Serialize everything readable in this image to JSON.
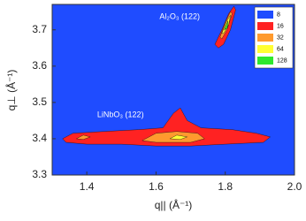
{
  "chart_data": {
    "type": "contour",
    "x_label": "q|| (Å⁻¹)",
    "y_label": "q⊥ (Å⁻¹)",
    "xlim": [
      1.3,
      2.0
    ],
    "xticks": [
      1.4,
      1.6,
      1.8,
      {
        "value": 2.0,
        "label": "2.0"
      }
    ],
    "ylim": [
      3.3,
      3.77
    ],
    "yticks": [
      3.3,
      3.4,
      3.5,
      3.6,
      3.7
    ],
    "background": "#1f4cff",
    "levels": [
      8,
      16,
      32,
      64,
      128
    ],
    "colors": [
      "#1f4cff",
      "#ff2222",
      "#ff9a2e",
      "#ffff33",
      "#2ee82e"
    ],
    "annotations": [
      {
        "text": "Al₂O₃ (122)",
        "x": 1.61,
        "y": 3.735
      },
      {
        "text": "LiNbO₃ (122)",
        "x": 1.43,
        "y": 3.465
      }
    ],
    "regions": [
      {
        "level": 16,
        "points": [
          [
            1.33,
            3.4
          ],
          [
            1.36,
            3.415
          ],
          [
            1.45,
            3.42
          ],
          [
            1.55,
            3.425
          ],
          [
            1.62,
            3.43
          ],
          [
            1.65,
            3.47
          ],
          [
            1.67,
            3.485
          ],
          [
            1.69,
            3.45
          ],
          [
            1.73,
            3.43
          ],
          [
            1.82,
            3.425
          ],
          [
            1.89,
            3.415
          ],
          [
            1.93,
            3.405
          ],
          [
            1.91,
            3.39
          ],
          [
            1.8,
            3.385
          ],
          [
            1.7,
            3.38
          ],
          [
            1.6,
            3.38
          ],
          [
            1.5,
            3.385
          ],
          [
            1.4,
            3.385
          ],
          [
            1.34,
            3.39
          ]
        ]
      },
      {
        "level": 32,
        "points": [
          [
            1.56,
            3.395
          ],
          [
            1.6,
            3.415
          ],
          [
            1.66,
            3.42
          ],
          [
            1.72,
            3.415
          ],
          [
            1.74,
            3.4
          ],
          [
            1.7,
            3.39
          ],
          [
            1.6,
            3.39
          ]
        ]
      },
      {
        "level": 32,
        "points": [
          [
            1.37,
            3.4
          ],
          [
            1.39,
            3.41
          ],
          [
            1.41,
            3.405
          ],
          [
            1.39,
            3.398
          ]
        ]
      },
      {
        "level": 64,
        "points": [
          [
            1.64,
            3.4
          ],
          [
            1.66,
            3.41
          ],
          [
            1.69,
            3.405
          ],
          [
            1.67,
            3.398
          ]
        ]
      },
      {
        "level": 16,
        "points": [
          [
            1.77,
            3.66
          ],
          [
            1.79,
            3.7
          ],
          [
            1.81,
            3.745
          ],
          [
            1.825,
            3.765
          ],
          [
            1.83,
            3.755
          ],
          [
            1.815,
            3.7
          ],
          [
            1.795,
            3.66
          ],
          [
            1.78,
            3.65
          ]
        ]
      },
      {
        "level": 32,
        "points": [
          [
            1.785,
            3.68
          ],
          [
            1.8,
            3.72
          ],
          [
            1.815,
            3.75
          ],
          [
            1.82,
            3.745
          ],
          [
            1.805,
            3.7
          ],
          [
            1.79,
            3.675
          ]
        ]
      },
      {
        "level": 64,
        "points": [
          [
            1.79,
            3.69
          ],
          [
            1.805,
            3.725
          ],
          [
            1.815,
            3.74
          ],
          [
            1.81,
            3.715
          ],
          [
            1.795,
            3.69
          ]
        ]
      },
      {
        "level": 128,
        "points": [
          [
            1.797,
            3.7
          ],
          [
            1.808,
            3.725
          ],
          [
            1.806,
            3.705
          ]
        ]
      }
    ]
  }
}
